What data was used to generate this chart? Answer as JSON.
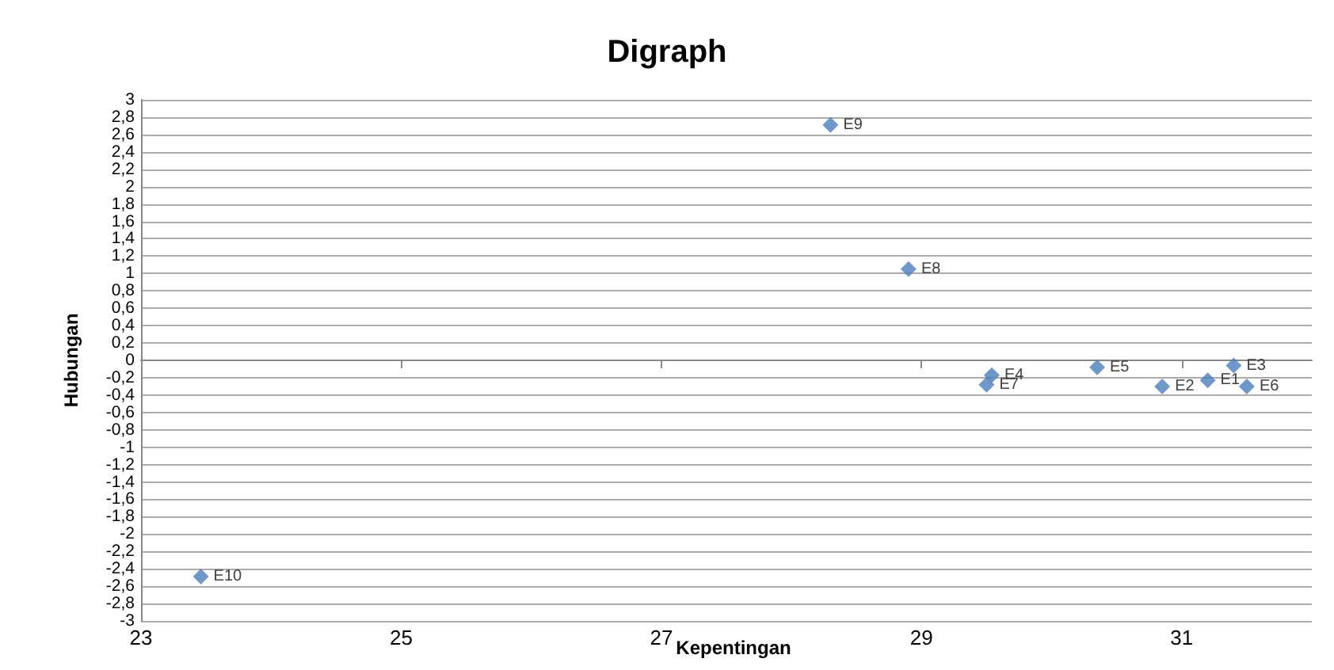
{
  "chart_data": {
    "type": "scatter",
    "title": "Digraph",
    "xlabel": "Kepentingan",
    "ylabel": "Hubungan",
    "series": [
      {
        "color": "#4a7ebb",
        "x": [
          31.2,
          30.85,
          31.4,
          29.54,
          30.35,
          31.5,
          29.5,
          28.9,
          28.3,
          23.46
        ],
        "values": [
          -0.23,
          -0.3,
          -0.06,
          -0.17,
          -0.08,
          -0.3,
          -0.28,
          1.05,
          2.71,
          -2.49
        ]
      }
    ],
    "annotations": [
      {
        "text": "E1",
        "x": 31.2,
        "y": -0.23
      },
      {
        "text": "E2",
        "x": 30.85,
        "y": -0.3
      },
      {
        "text": "E3",
        "x": 31.4,
        "y": -0.06
      },
      {
        "text": "E4",
        "x": 29.54,
        "y": -0.17
      },
      {
        "text": "E5",
        "x": 30.35,
        "y": -0.08
      },
      {
        "text": "E6",
        "x": 31.5,
        "y": -0.3
      },
      {
        "text": "E7",
        "x": 29.5,
        "y": -0.28
      },
      {
        "text": "E8",
        "x": 28.9,
        "y": 1.05
      },
      {
        "text": "E9",
        "x": 28.3,
        "y": 2.71
      },
      {
        "text": "E10",
        "x": 23.46,
        "y": -2.49
      }
    ],
    "marker": "diamond",
    "grid": "y",
    "xlim": [
      23,
      32
    ],
    "xticks": [
      23,
      25,
      27,
      29,
      31
    ],
    "ylim": [
      -3,
      3
    ],
    "yticks": [
      {
        "value": -3,
        "label": "-3"
      },
      {
        "value": -2.8,
        "label": "-2,8"
      },
      {
        "value": -2.6,
        "label": "-2,6"
      },
      {
        "value": -2.4,
        "label": "-2,4"
      },
      {
        "value": -2.2,
        "label": "-2,2"
      },
      {
        "value": -2,
        "label": "-2"
      },
      {
        "value": -1.8,
        "label": "-1,8"
      },
      {
        "value": -1.6,
        "label": "-1,6"
      },
      {
        "value": -1.4,
        "label": "-1,4"
      },
      {
        "value": -1.2,
        "label": "-1,2"
      },
      {
        "value": -1,
        "label": "-1"
      },
      {
        "value": -0.8,
        "label": "-0,8"
      },
      {
        "value": -0.6,
        "label": "-0,6"
      },
      {
        "value": -0.4,
        "label": "-0,4"
      },
      {
        "value": -0.2,
        "label": "-0,2"
      },
      {
        "value": 0,
        "label": "0"
      },
      {
        "value": 0.2,
        "label": "0,2"
      },
      {
        "value": 0.4,
        "label": "0,4"
      },
      {
        "value": 0.6,
        "label": "0,6"
      },
      {
        "value": 0.8,
        "label": "0,8"
      },
      {
        "value": 1,
        "label": "1"
      },
      {
        "value": 1.2,
        "label": "1,2"
      },
      {
        "value": 1.4,
        "label": "1,4"
      },
      {
        "value": 1.6,
        "label": "1,6"
      },
      {
        "value": 1.8,
        "label": "1,8"
      },
      {
        "value": 2,
        "label": "2"
      },
      {
        "value": 2.2,
        "label": "2,2"
      },
      {
        "value": 2.4,
        "label": "2,4"
      },
      {
        "value": 2.6,
        "label": "2,6"
      },
      {
        "value": 2.8,
        "label": "2,8"
      },
      {
        "value": 3,
        "label": "3"
      }
    ]
  }
}
